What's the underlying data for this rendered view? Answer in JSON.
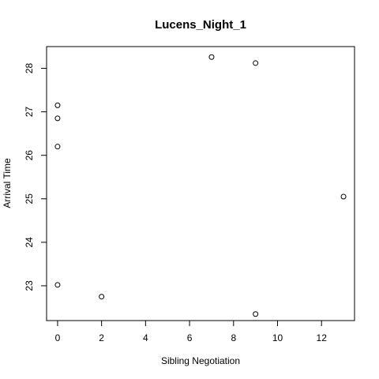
{
  "chart_data": {
    "type": "scatter",
    "title": "Lucens_Night_1",
    "xlabel": "Sibling Negotiation",
    "ylabel": "Arrival Time",
    "xlim": [
      -0.5,
      13.5
    ],
    "ylim": [
      22.2,
      28.5
    ],
    "xticks": [
      0,
      2,
      4,
      6,
      8,
      10,
      12
    ],
    "yticks": [
      23,
      24,
      25,
      26,
      27,
      28
    ],
    "grid": false,
    "points": [
      {
        "x": 0,
        "y": 27.15
      },
      {
        "x": 0,
        "y": 26.85
      },
      {
        "x": 0,
        "y": 26.2
      },
      {
        "x": 0,
        "y": 23.02
      },
      {
        "x": 2,
        "y": 22.75
      },
      {
        "x": 7,
        "y": 28.26
      },
      {
        "x": 9,
        "y": 28.12
      },
      {
        "x": 9,
        "y": 22.35
      },
      {
        "x": 13,
        "y": 25.05
      }
    ]
  }
}
